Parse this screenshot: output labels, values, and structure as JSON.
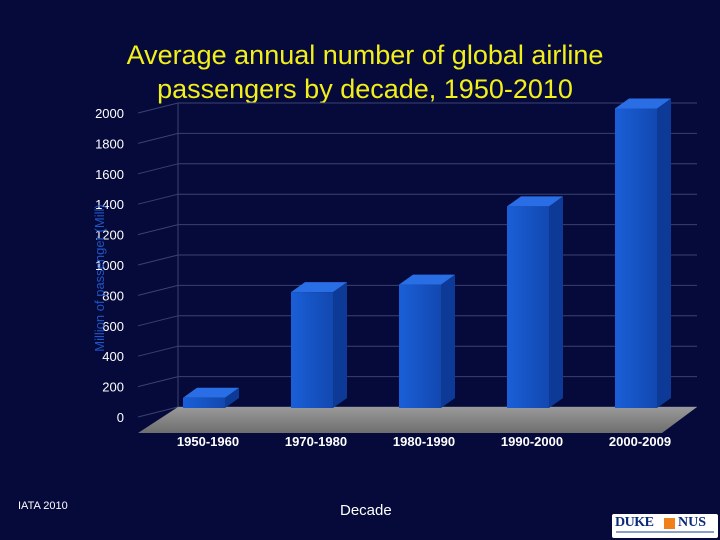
{
  "chart_data": {
    "type": "bar",
    "title": "Average annual number of global airline passengers by decade, 1950-2010",
    "ylabel": "Million of passenger (Mill)",
    "xlabel": "Decade",
    "categories": [
      "1950-1960",
      "1970-1980",
      "1980-1990",
      "1990-2000",
      "2000-2009"
    ],
    "values": [
      68,
      770,
      820,
      1340,
      1990
    ],
    "ylim": [
      0,
      2000
    ],
    "yticks": [
      "0",
      "200",
      "400",
      "600",
      "800",
      "1000",
      "1200",
      "1400",
      "1600",
      "1800",
      "2000"
    ],
    "grid": true,
    "bar_color": "#1655c8"
  },
  "source": "IATA 2010",
  "logo": {
    "left": "DUKE",
    "right": "NUS"
  }
}
